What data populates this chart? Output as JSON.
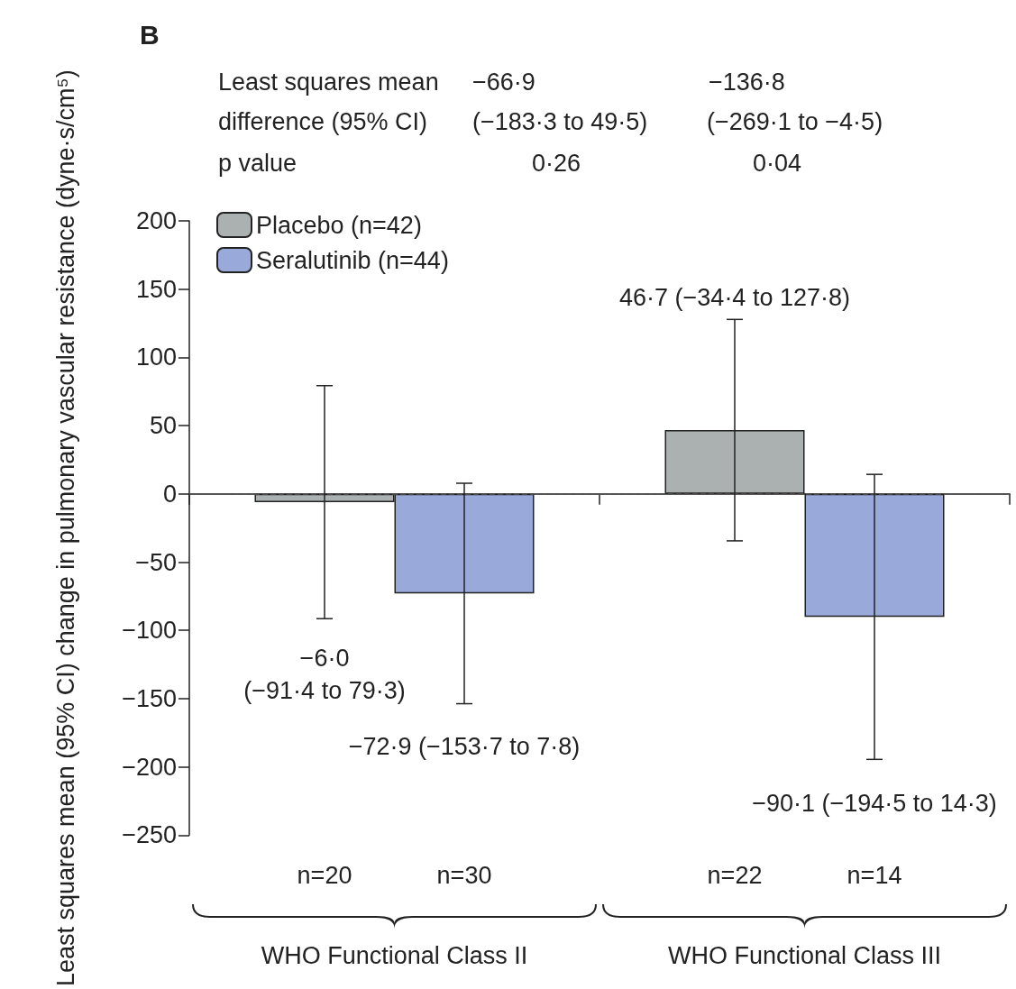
{
  "chart_data": {
    "type": "bar",
    "title": "B",
    "categories": [
      "WHO Functional Class II",
      "WHO Functional Class III"
    ],
    "series": [
      {
        "name": "Placebo (n=42)",
        "color": "#abb1b1",
        "values": [
          -6.0,
          46.7
        ],
        "errors": [
          [
            -91.4,
            79.3
          ],
          [
            -34.4,
            127.8
          ]
        ]
      },
      {
        "name": "Seralutinib (n=44)",
        "color": "#99a9d9",
        "values": [
          -72.9,
          -90.1
        ],
        "errors": [
          [
            -153.7,
            7.8
          ],
          [
            -194.5,
            14.3
          ]
        ]
      }
    ],
    "ylabel": "Least squares mean (95% CI) change in pulmonary vascular resistance (dyne·s/cm⁵)",
    "ylim": [
      -250,
      200
    ],
    "yticks": [
      -250,
      -200,
      -150,
      -100,
      -50,
      0,
      50,
      100,
      150,
      200
    ],
    "ref_lines": [
      {
        "axis": "y",
        "value": 0,
        "line_style": "dashed",
        "color": "#555555"
      }
    ],
    "legend": "top left",
    "grid": false,
    "annotations": [
      "Least squares mean",
      "difference (95% CI)",
      "p value",
      "−66·9",
      "(−183·3 to 49·5)",
      "0·26",
      "−136·8",
      "(−269·1 to −4·5)",
      "0·04",
      "n=20",
      "n=30",
      "n=22",
      "n=14",
      "−6·0 (−91·4 to 79·3)",
      "−72·9 (−153·7 to 7·8)",
      "46·7 (−34·4 to 127·8)",
      "−90·1 (−194·5 to 14·3)"
    ]
  }
}
